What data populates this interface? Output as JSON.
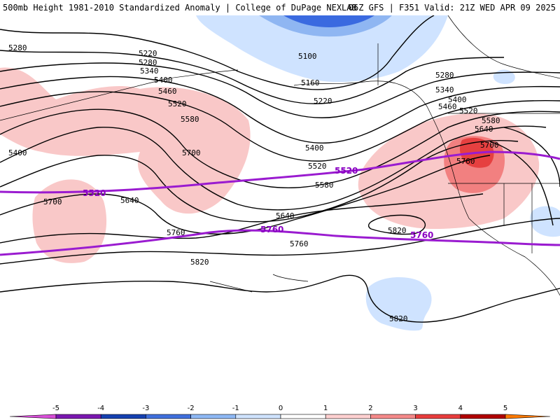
{
  "header": {
    "title_left": "500mb Height 1981-2010 Standardized Anomaly | College of DuPage NEXLAB",
    "title_right": "06Z GFS | F351 Valid: 21Z WED APR 09 2025"
  },
  "contours": {
    "labels": [
      "5280",
      "5220",
      "5280",
      "5340",
      "5400",
      "5460",
      "5520",
      "5580",
      "5700",
      "5400",
      "5640",
      "5700",
      "5760",
      "5100",
      "5160",
      "5220",
      "5400",
      "5520",
      "5580",
      "5640",
      "5760",
      "5820",
      "5280",
      "5340",
      "5400",
      "5460",
      "5520",
      "5580",
      "5640",
      "5700",
      "5760",
      "5820",
      "5820"
    ]
  },
  "highlight_contours": {
    "labels": [
      "5520",
      "5760",
      "5760"
    ]
  },
  "colorbar": {
    "ticks": [
      "-5",
      "-4",
      "-3",
      "-2",
      "-1",
      "0",
      "1",
      "2",
      "3",
      "4",
      "5"
    ],
    "colors": [
      "#d94fd9",
      "#7a17b0",
      "#1540b0",
      "#3f6fdd",
      "#8eb8f5",
      "#cfe3ff",
      "#ffffff",
      "#ffd0d0",
      "#f58a8a",
      "#e83c3c",
      "#b00000",
      "#ff7a00",
      "#ffc000"
    ]
  },
  "anomaly_colors": {
    "positive_light": "#f9c8c8",
    "positive_medium": "#f28080",
    "positive_strong": "#e64040",
    "negative_light": "#cfe3ff",
    "negative_medium": "#8fb6f2",
    "negative_strong": "#3a6ae0",
    "highlight_contour": "#9a1bd0"
  }
}
